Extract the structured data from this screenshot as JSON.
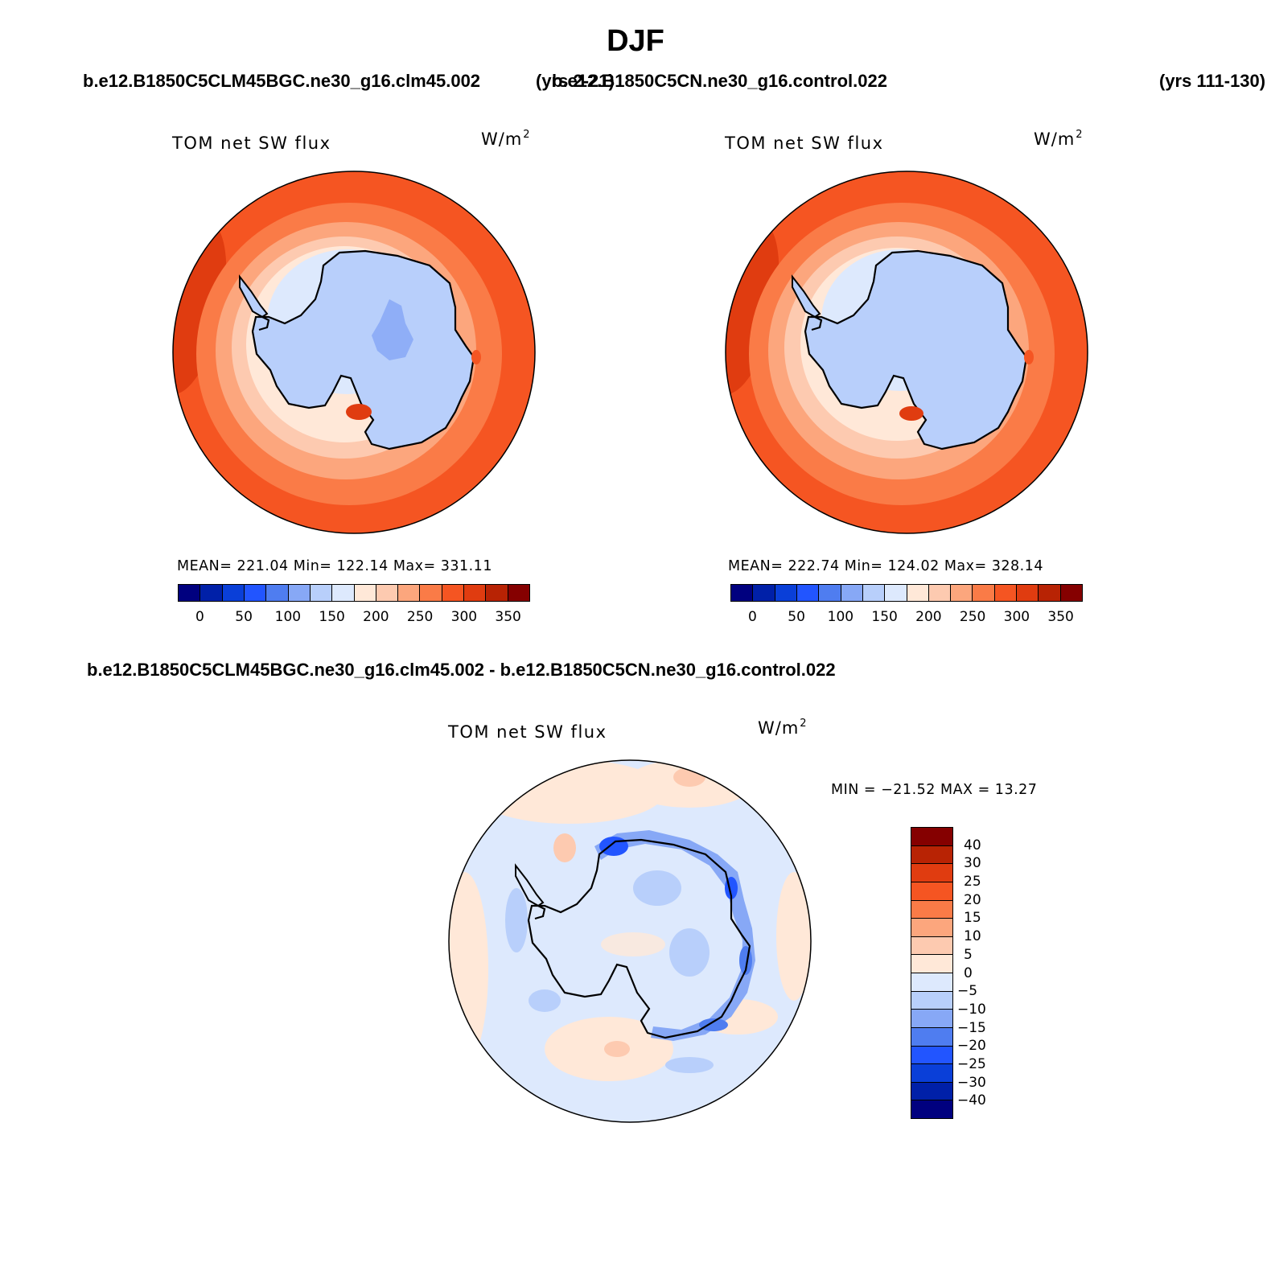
{
  "title": "DJF",
  "top_cases": {
    "left_case": "b.e12.B1850C5CLM45BGC.ne30_g16.clm45.002",
    "left_years": "(yrs 2-21)",
    "right_case": "b.e12.B1850C5CN.ne30_g16.control.022",
    "right_years": "(yrs 111-130)"
  },
  "diff_case": "b.e12.B1850C5CLM45BGC.ne30_g16.clm45.002 - b.e12.B1850C5CN.ne30_g16.control.022",
  "panels": {
    "left": {
      "variable": "TOM net SW flux",
      "units_base": "W/m",
      "units_exp": "2",
      "stats": "MEAN= 221.04   Min= 122.14   Max= 331.11"
    },
    "right": {
      "variable": "TOM net SW flux",
      "units_base": "W/m",
      "units_exp": "2",
      "stats": "MEAN= 222.74   Min= 124.02   Max= 328.14"
    },
    "diff": {
      "variable": "TOM net SW flux",
      "units_base": "W/m",
      "units_exp": "2",
      "stats": "MIN = −21.52 MAX =   13.27"
    }
  },
  "colorbar_abs": {
    "colors": [
      "#00007f",
      "#0020a8",
      "#0a3fd8",
      "#2255ff",
      "#4f7df0",
      "#87a8f6",
      "#b8cffb",
      "#dde9fd",
      "#ffe8d8",
      "#fdcab0",
      "#fca67d",
      "#fa7b47",
      "#f55522",
      "#e03c10",
      "#b82304",
      "#850000"
    ],
    "labels": [
      "0",
      "50",
      "100",
      "150",
      "200",
      "250",
      "300",
      "350"
    ]
  },
  "colorbar_diff": {
    "colors": [
      "#850000",
      "#b82304",
      "#e03c10",
      "#f55522",
      "#fa7b47",
      "#fca67d",
      "#fdcab0",
      "#ffe8d8",
      "#dde9fd",
      "#b8cffb",
      "#87a8f6",
      "#4f7df0",
      "#2255ff",
      "#0a3fd8",
      "#0020a8",
      "#00007f"
    ],
    "labels": [
      "40",
      "30",
      "25",
      "20",
      "15",
      "10",
      "5",
      "0",
      "−5",
      "−10",
      "−15",
      "−20",
      "−25",
      "−30",
      "−40"
    ]
  }
}
